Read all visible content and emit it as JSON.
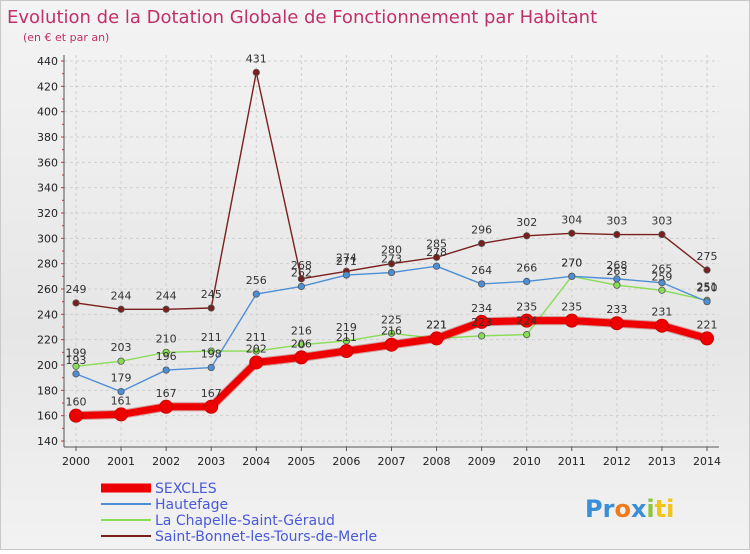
{
  "title": "Evolution de la Dotation Globale de Fonctionnement par Habitant",
  "subtitle": "(en € et par an)",
  "logo_text": "Proxiti",
  "chart_data": {
    "type": "line",
    "title": "Evolution de la Dotation Globale de Fonctionnement par Habitant",
    "ylabel": "(en € et par an)",
    "xlabel": "",
    "ylim": [
      140,
      440
    ],
    "yticks": [
      140,
      160,
      180,
      200,
      220,
      240,
      260,
      280,
      300,
      320,
      340,
      360,
      380,
      400,
      420,
      440
    ],
    "categories": [
      "2000",
      "2001",
      "2002",
      "2003",
      "2004",
      "2005",
      "2006",
      "2007",
      "2008",
      "2009",
      "2010",
      "2011",
      "2012",
      "2013",
      "2014"
    ],
    "legend_position": "bottom-left",
    "series": [
      {
        "name": "SEXCLES",
        "color": "#ee0000",
        "values": [
          160,
          161,
          167,
          167,
          202,
          206,
          211,
          216,
          221,
          234,
          235,
          235,
          233,
          231,
          221
        ],
        "labels": [
          "160",
          "161",
          "167",
          "167",
          "202",
          "206",
          "211",
          "216",
          "221",
          "234",
          "235",
          "235",
          "233",
          "231",
          "221"
        ]
      },
      {
        "name": "Hautefage",
        "color": "#4d8fd6",
        "values": [
          193,
          179,
          196,
          198,
          256,
          262,
          271,
          273,
          278,
          264,
          266,
          270,
          268,
          265,
          250
        ],
        "labels": [
          "193",
          "179",
          "196",
          "198",
          "256",
          "262",
          "271",
          "273",
          "278",
          "264",
          "266",
          "270",
          "268",
          "265",
          "250"
        ]
      },
      {
        "name": "La Chapelle-Saint-Géraud",
        "color": "#88dd55",
        "values": [
          199,
          203,
          210,
          211,
          211,
          216,
          219,
          225,
          221,
          223,
          224,
          270,
          263,
          259,
          251
        ],
        "labels": [
          "199",
          "203",
          "210",
          "211",
          "211",
          "216",
          "219",
          "225",
          "221",
          "223",
          "224",
          "270",
          "263",
          "259",
          "251"
        ]
      },
      {
        "name": "Saint-Bonnet-les-Tours-de-Merle",
        "color": "#7a1f1f",
        "values": [
          249,
          244,
          244,
          245,
          431,
          268,
          274,
          280,
          285,
          296,
          302,
          304,
          303,
          303,
          275
        ],
        "labels": [
          "249",
          "244",
          "244",
          "245",
          "431",
          "268",
          "274",
          "280",
          "285",
          "296",
          "302",
          "304",
          "303",
          "303",
          "275"
        ]
      }
    ]
  }
}
